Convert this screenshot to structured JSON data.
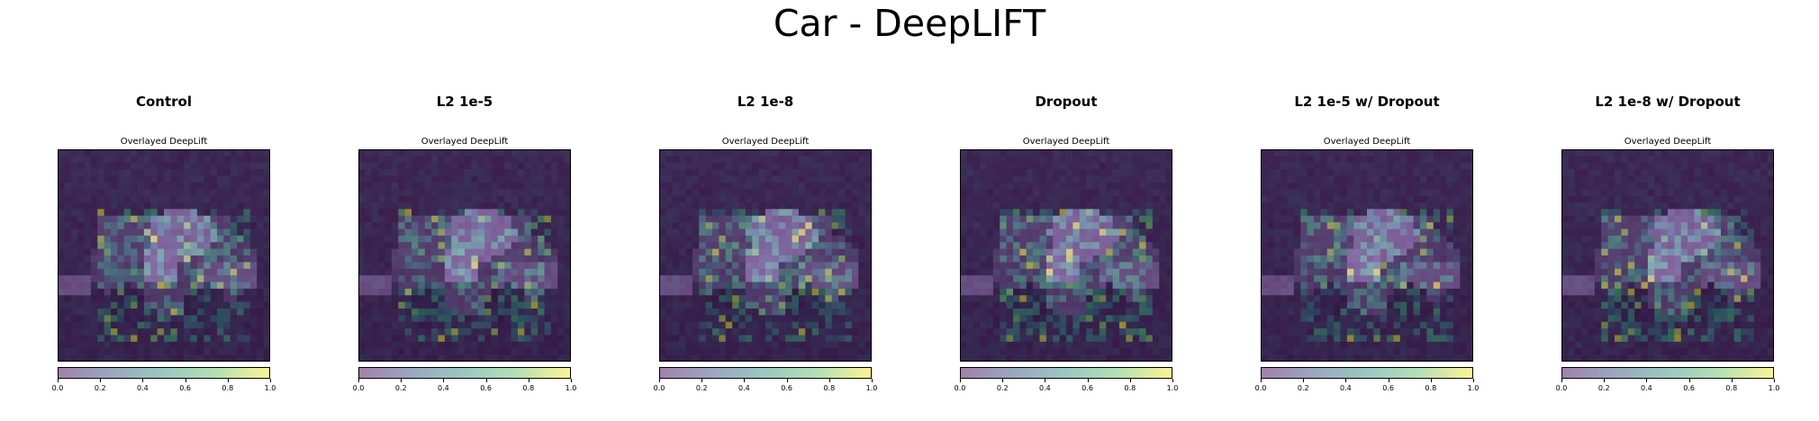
{
  "figure": {
    "title": "Car - DeepLIFT"
  },
  "colormap": {
    "name": "viridis",
    "stops": [
      "#440154",
      "#31688e",
      "#35b779",
      "#fde725"
    ],
    "overlay_alpha": 0.5
  },
  "chart_data": [
    {
      "type": "heatmap",
      "title": "Control",
      "subtitle": "Overlayed DeepLift",
      "colorbar": {
        "range": [
          0,
          1
        ],
        "ticks": [
          "0.0",
          "0.2",
          "0.4",
          "0.6",
          "0.8",
          "1.0"
        ]
      },
      "grid": false
    },
    {
      "type": "heatmap",
      "title": "L2 1e-5",
      "subtitle": "Overlayed DeepLift",
      "colorbar": {
        "range": [
          0,
          1
        ],
        "ticks": [
          "0.0",
          "0.2",
          "0.4",
          "0.6",
          "0.8",
          "1.0"
        ]
      },
      "grid": false
    },
    {
      "type": "heatmap",
      "title": "L2 1e-8",
      "subtitle": "Overlayed DeepLift",
      "colorbar": {
        "range": [
          0,
          1
        ],
        "ticks": [
          "0.0",
          "0.2",
          "0.4",
          "0.6",
          "0.8",
          "1.0"
        ]
      },
      "grid": false
    },
    {
      "type": "heatmap",
      "title": "Dropout",
      "subtitle": "Overlayed DeepLift",
      "colorbar": {
        "range": [
          0,
          1
        ],
        "ticks": [
          "0.0",
          "0.2",
          "0.4",
          "0.6",
          "0.8",
          "1.0"
        ]
      },
      "grid": false
    },
    {
      "type": "heatmap",
      "title": "L2 1e-5 w/ Dropout",
      "subtitle": "Overlayed DeepLift",
      "colorbar": {
        "range": [
          0,
          1
        ],
        "ticks": [
          "0.0",
          "0.2",
          "0.4",
          "0.6",
          "0.8",
          "1.0"
        ]
      },
      "grid": false
    },
    {
      "type": "heatmap",
      "title": "L2 1e-8 w/ Dropout",
      "subtitle": "Overlayed DeepLift",
      "colorbar": {
        "range": [
          0,
          1
        ],
        "ticks": [
          "0.0",
          "0.2",
          "0.4",
          "0.6",
          "0.8",
          "1.0"
        ]
      },
      "grid": false
    }
  ]
}
